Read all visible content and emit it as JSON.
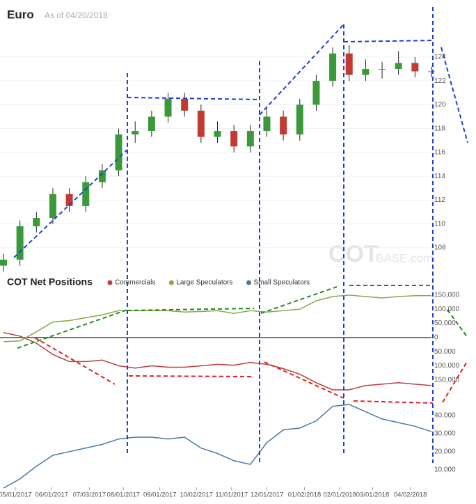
{
  "chart_data": [
    {
      "type": "candlestick",
      "title": "Euro",
      "subtitle": "As of 04/20/2018",
      "watermark": {
        "bold": "COT",
        "rest": "BASE.com"
      },
      "x": [
        "04/21/2017",
        "05/05/2017",
        "05/19/2017",
        "06/02/2017",
        "06/16/2017",
        "06/30/2017",
        "07/14/2017",
        "07/28/2017",
        "08/11/2017",
        "08/25/2017",
        "09/08/2017",
        "09/22/2017",
        "10/06/2017",
        "10/20/2017",
        "11/03/2017",
        "11/17/2017",
        "12/01/2017",
        "12/15/2017",
        "12/29/2017",
        "01/12/2018",
        "01/26/2018",
        "02/09/2018",
        "02/23/2018",
        "03/09/2018",
        "03/23/2018",
        "04/06/2018",
        "04/20/2018"
      ],
      "open": [
        106.5,
        107.0,
        109.8,
        110.5,
        112.5,
        111.5,
        113.5,
        114.5,
        117.5,
        117.8,
        119.0,
        120.5,
        119.5,
        117.3,
        117.8,
        116.5,
        117.8,
        119.0,
        117.5,
        120.0,
        122.0,
        124.3,
        122.5,
        123.0,
        123.0,
        123.5,
        122.8
      ],
      "high": [
        107.5,
        110.3,
        111.0,
        113.0,
        113.0,
        114.0,
        115.0,
        118.0,
        118.6,
        119.5,
        121.0,
        121.0,
        120.0,
        118.6,
        118.3,
        118.3,
        119.7,
        119.5,
        120.5,
        122.5,
        124.8,
        125.0,
        123.8,
        123.6,
        124.5,
        124.0,
        123.2
      ],
      "low": [
        106.0,
        106.5,
        109.3,
        110.0,
        111.0,
        111.0,
        113.0,
        114.0,
        116.8,
        117.3,
        118.5,
        119.0,
        116.8,
        116.8,
        116.0,
        116.0,
        117.3,
        117.0,
        117.0,
        119.5,
        121.5,
        122.0,
        122.0,
        122.2,
        122.5,
        122.3,
        122.3
      ],
      "close": [
        107.0,
        109.8,
        110.5,
        112.5,
        111.5,
        113.5,
        114.5,
        117.5,
        117.8,
        119.0,
        120.5,
        119.5,
        117.3,
        117.8,
        116.5,
        117.8,
        119.0,
        117.5,
        120.0,
        122.0,
        124.3,
        122.5,
        123.0,
        123.0,
        123.5,
        122.8,
        122.8
      ],
      "up_color": "#3a9a3a",
      "down_color": "#c23b32",
      "ylim": [
        106.3,
        128.2
      ],
      "yticks": [
        108,
        110,
        112,
        114,
        116,
        118,
        120,
        122,
        124
      ],
      "grid": true
    },
    {
      "type": "line",
      "title": "COT Net Positions",
      "x": [
        "04/21/2017",
        "05/05/2017",
        "05/19/2017",
        "06/02/2017",
        "06/16/2017",
        "06/30/2017",
        "07/14/2017",
        "07/28/2017",
        "08/11/2017",
        "08/25/2017",
        "09/08/2017",
        "09/22/2017",
        "10/06/2017",
        "10/20/2017",
        "11/03/2017",
        "11/17/2017",
        "12/01/2017",
        "12/15/2017",
        "12/29/2017",
        "01/12/2018",
        "01/26/2018",
        "02/09/2018",
        "02/23/2018",
        "03/09/2018",
        "03/23/2018",
        "04/06/2018",
        "04/20/2018"
      ],
      "series": [
        {
          "name": "Commercials",
          "color": "#b5413f",
          "values": [
            17000,
            5000,
            -20000,
            -60000,
            -85000,
            -85000,
            -80000,
            -100000,
            -108000,
            -100000,
            -105000,
            -105000,
            -100000,
            -95000,
            -98000,
            -88000,
            -95000,
            -110000,
            -130000,
            -160000,
            -185000,
            -185000,
            -170000,
            -165000,
            -160000,
            -165000,
            -170000
          ]
        },
        {
          "name": "Large Speculators",
          "color": "#8aa84a",
          "values": [
            -15000,
            -12000,
            20000,
            55000,
            60000,
            70000,
            80000,
            95000,
            95000,
            95000,
            95000,
            90000,
            92000,
            95000,
            85000,
            95000,
            90000,
            95000,
            100000,
            130000,
            145000,
            150000,
            145000,
            140000,
            145000,
            148000,
            148000
          ]
        },
        {
          "name": "Small Speculators",
          "color": "#4a77a8",
          "axis": "y2",
          "values": [
            0,
            5000,
            12000,
            18000,
            20000,
            22000,
            24000,
            27000,
            28000,
            28000,
            27000,
            28000,
            22000,
            19000,
            15000,
            13000,
            25000,
            32000,
            33000,
            37000,
            45000,
            46000,
            42000,
            38000,
            36000,
            34000,
            31000
          ]
        }
      ],
      "ylim": [
        -222000,
        172000
      ],
      "yticks": [
        {
          "value": 150000,
          "label": "150,000"
        },
        {
          "value": 100000,
          "label": "100,000"
        },
        {
          "value": 50000,
          "label": "50,000"
        },
        0,
        {
          "value": -50000,
          "label": "50,000"
        },
        {
          "value": -100000,
          "label": "100,000"
        },
        {
          "value": -150000,
          "label": "150,000"
        }
      ],
      "y2lim": [
        0,
        46000
      ],
      "y2ticks": [
        {
          "value": 40000,
          "label": "40,000"
        },
        {
          "value": 30000,
          "label": "30,000"
        },
        {
          "value": 20000,
          "label": "20,000"
        },
        {
          "value": 10000,
          "label": "10,000"
        }
      ],
      "xticks": [
        "05/01/2017",
        "06/01/2017",
        "07/03/2017",
        "08/01/2017",
        "09/01/2017",
        "10/02/2017",
        "11/01/2017",
        "12/01/2017",
        "01/02/2018",
        "02/01/2018",
        "03/01/2018",
        "04/02/2018"
      ],
      "zero_line": true
    }
  ]
}
